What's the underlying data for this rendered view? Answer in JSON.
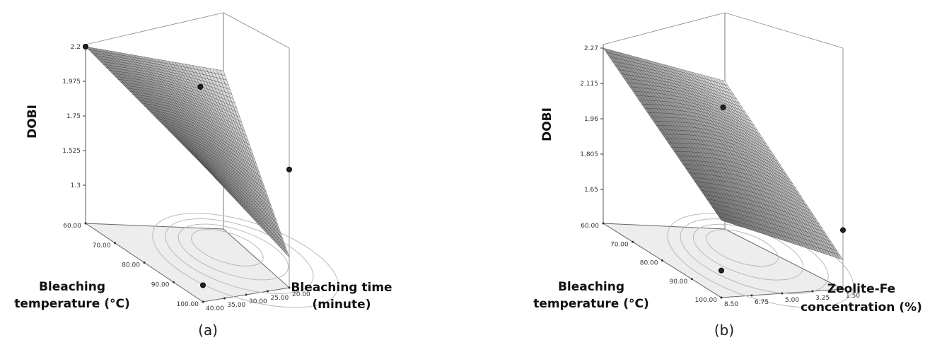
{
  "chart_data": [
    {
      "type": "surface3d",
      "caption": "(a)",
      "zlabel": "DOBI",
      "xlabel": [
        "Bleaching",
        "temperature (°C)"
      ],
      "ylabel": [
        "Bleaching time",
        "(minute)"
      ],
      "x_ticks": [
        "60.00",
        "70.00",
        "80.00",
        "90.00",
        "100.00"
      ],
      "y_ticks": [
        "20.00",
        "25.00",
        "30.00",
        "35.00",
        "40.00"
      ],
      "z_ticks": [
        "1.3",
        "1.525",
        "1.75",
        "1.975",
        "2.2"
      ],
      "xlim": [
        60,
        100
      ],
      "ylim": [
        20,
        40
      ],
      "zlim": [
        1.3,
        2.2
      ],
      "surface_corners": [
        {
          "temperature": 60,
          "time": 20,
          "DOBI": 2.2
        },
        {
          "temperature": 100,
          "time": 20,
          "DOBI": 1.94
        },
        {
          "temperature": 100,
          "time": 40,
          "DOBI": 1.25
        },
        {
          "temperature": 60,
          "time": 40,
          "DOBI": 2.08
        }
      ],
      "design_points": [
        {
          "temperature": 60,
          "time": 40,
          "DOBI": 2.2
        },
        {
          "temperature": 100,
          "time": 20,
          "DOBI": 1.82
        },
        {
          "temperature": 80,
          "time": 30,
          "DOBI": 2.18
        },
        {
          "temperature": 100,
          "time": 40,
          "DOBI": 1.16
        }
      ]
    },
    {
      "type": "surface3d",
      "caption": "(b)",
      "zlabel": "DOBI",
      "xlabel": [
        "Bleaching",
        "temperature (°C)"
      ],
      "ylabel": [
        "Zeolite-Fe",
        "concentration (%)"
      ],
      "x_ticks": [
        "60.00",
        "70.00",
        "80.00",
        "90.00",
        "100.00"
      ],
      "y_ticks": [
        "1.50",
        "3.25",
        "5.00",
        "6.75",
        "8.50"
      ],
      "z_ticks": [
        "1.65",
        "1.805",
        "1.96",
        "2.115",
        "2.27"
      ],
      "xlim": [
        60,
        100
      ],
      "ylim": [
        1.5,
        8.5
      ],
      "zlim": [
        1.65,
        2.27
      ],
      "surface_corners": [
        {
          "temperature": 60,
          "concentration": 1.5,
          "DOBI": 2.27
        },
        {
          "temperature": 100,
          "concentration": 1.5,
          "DOBI": 1.84
        },
        {
          "temperature": 100,
          "concentration": 8.5,
          "DOBI": 1.63
        },
        {
          "temperature": 60,
          "concentration": 8.5,
          "DOBI": 2.15
        }
      ],
      "design_points": [
        {
          "temperature": 100,
          "concentration": 1.5,
          "DOBI": 1.76
        },
        {
          "temperature": 80,
          "concentration": 5.0,
          "DOBI": 2.17
        },
        {
          "temperature": 100,
          "concentration": 8.5,
          "DOBI": 1.62
        }
      ]
    }
  ]
}
